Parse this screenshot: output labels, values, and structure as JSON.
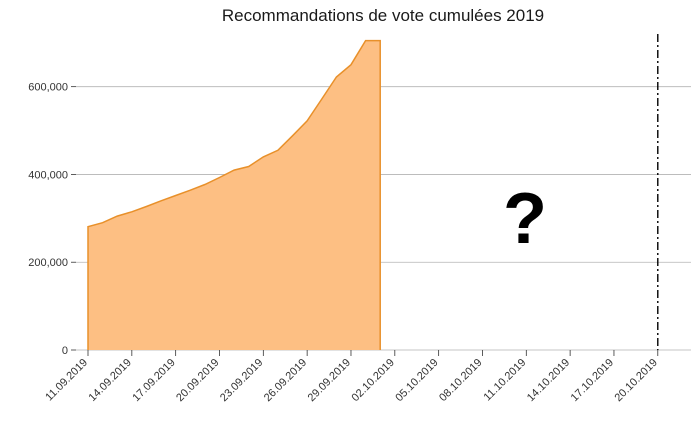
{
  "chart_data": {
    "type": "area",
    "title": "Recommandations de vote cumulées 2019",
    "xlabel": "",
    "ylabel": "",
    "x": [
      "11.09.2019",
      "12.09.2019",
      "13.09.2019",
      "14.09.2019",
      "15.09.2019",
      "16.09.2019",
      "17.09.2019",
      "18.09.2019",
      "19.09.2019",
      "20.09.2019",
      "21.09.2019",
      "22.09.2019",
      "23.09.2019",
      "24.09.2019",
      "25.09.2019",
      "26.09.2019",
      "27.09.2019",
      "28.09.2019",
      "29.09.2019",
      "30.09.2019",
      "01.10.2019"
    ],
    "values": [
      281000,
      290000,
      305000,
      315000,
      327000,
      340000,
      352000,
      364000,
      377000,
      393000,
      410000,
      418000,
      440000,
      455000,
      488000,
      522000,
      572000,
      622000,
      650000,
      705000,
      705000
    ],
    "ylim": [
      0,
      720000
    ],
    "yticks": [
      0,
      200000,
      400000,
      600000
    ],
    "ytick_labels": [
      "0",
      "200,000",
      "400,000",
      "600,000"
    ],
    "xticks": [
      "11.09.2019",
      "14.09.2019",
      "17.09.2019",
      "20.09.2019",
      "23.09.2019",
      "26.09.2019",
      "29.09.2019",
      "02.10.2019",
      "05.10.2019",
      "08.10.2019",
      "11.10.2019",
      "14.10.2019",
      "17.10.2019",
      "20.10.2019"
    ],
    "x_range": [
      "11.09.2019",
      "20.10.2019"
    ],
    "vline": "20.10.2019",
    "annotation": "?",
    "grid": "horizontal",
    "fill_color": "#fdbf83",
    "line_color": "#e8902a"
  }
}
